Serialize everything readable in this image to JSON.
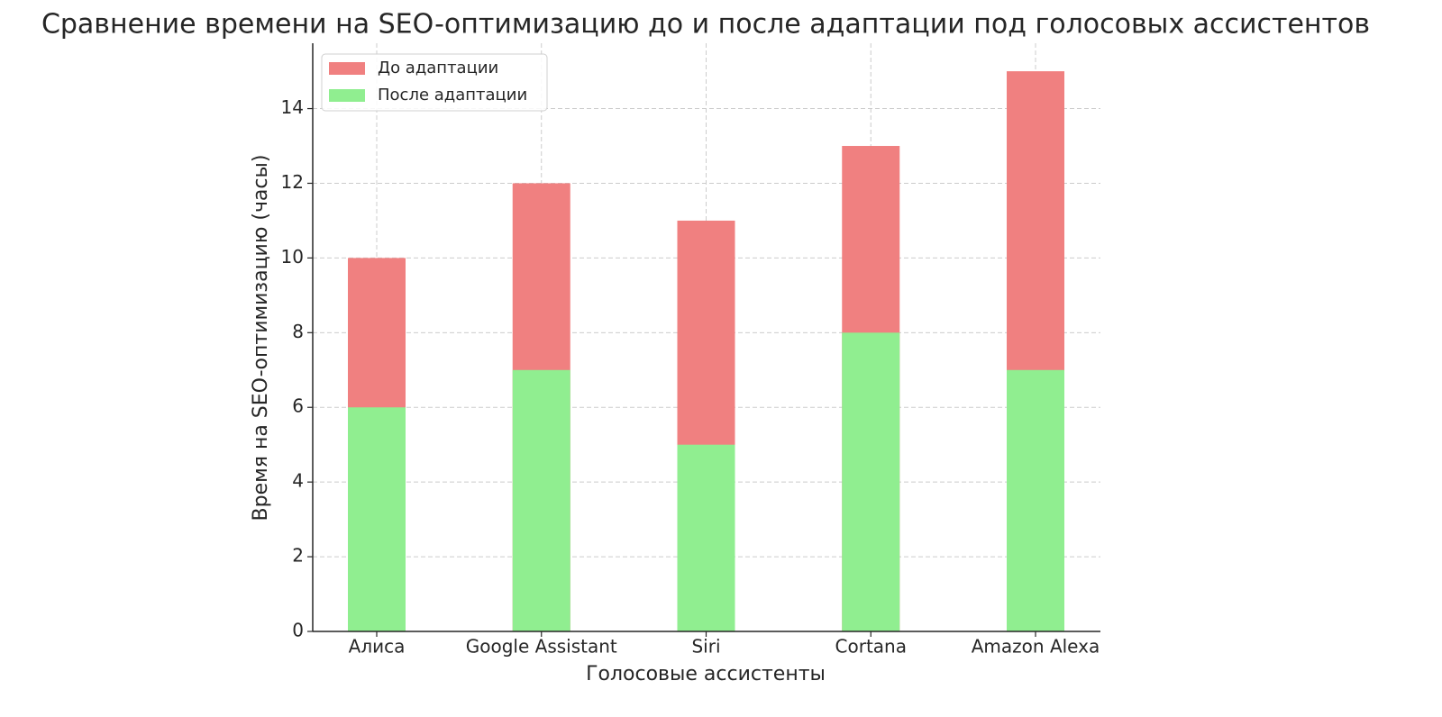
{
  "chart_data": {
    "type": "bar",
    "title": "Сравнение времени на SEO-оптимизацию до и после адаптации под голосовых ассистентов",
    "x_label": "Голосовые ассистенты",
    "y_label": "Время на SEO-оптимизацию (часы)",
    "categories": [
      "Алиса",
      "Google Assistant",
      "Siri",
      "Cortana",
      "Amazon Alexa"
    ],
    "series": [
      {
        "name": "До адаптации",
        "color": "#f08080",
        "values": [
          10,
          12,
          11,
          13,
          15
        ]
      },
      {
        "name": "После адаптации",
        "color": "#90ee90",
        "values": [
          6,
          7,
          5,
          8,
          7
        ]
      }
    ],
    "ylim": [
      0,
      15.75
    ],
    "yticks": [
      0,
      2,
      4,
      6,
      8,
      10,
      12,
      14
    ],
    "grid": true,
    "legend": "upper left"
  }
}
